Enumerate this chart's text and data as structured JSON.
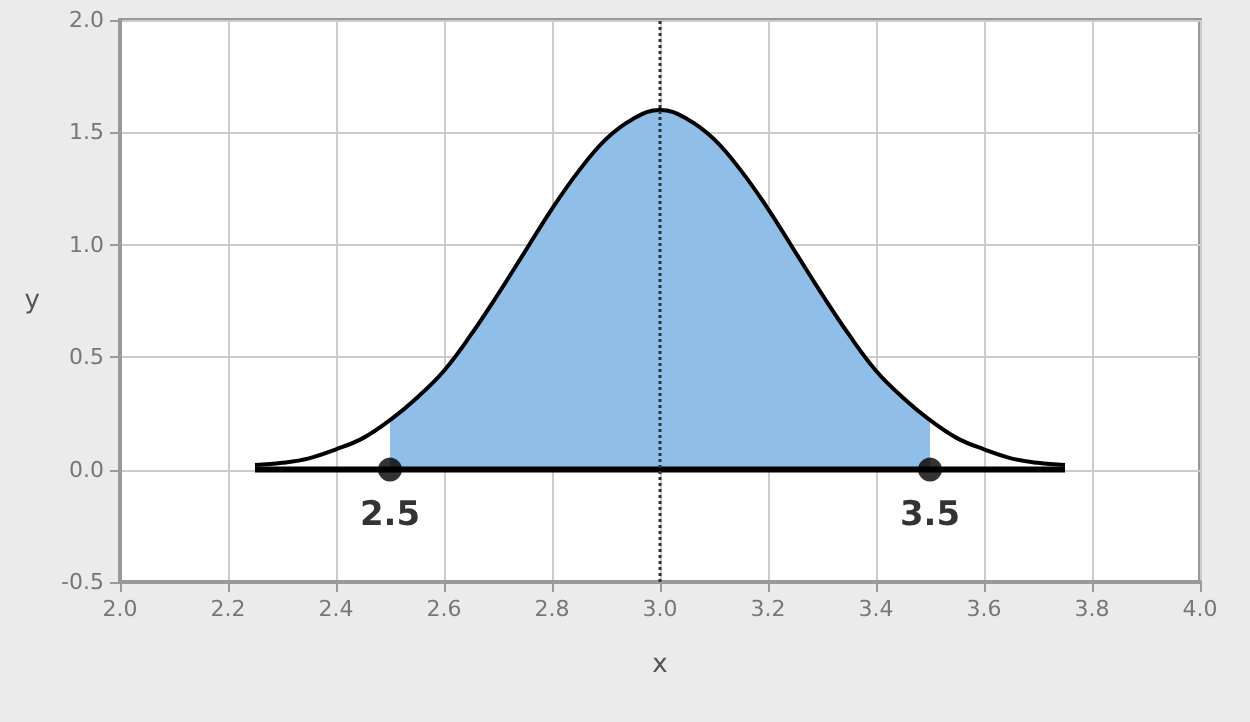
{
  "chart_data": {
    "type": "line",
    "xlabel": "x",
    "ylabel": "y",
    "xlim": [
      2,
      4
    ],
    "xticks": [
      {
        "value": 2,
        "label": "2.0"
      },
      {
        "value": 2.2,
        "label": "2.2"
      },
      {
        "value": 2.4,
        "label": "2.4"
      },
      {
        "value": 2.6,
        "label": "2.6"
      },
      {
        "value": 2.8,
        "label": "2.8"
      },
      {
        "value": 3,
        "label": "3.0"
      },
      {
        "value": 3.2,
        "label": "3.2"
      },
      {
        "value": 3.4,
        "label": "3.4"
      },
      {
        "value": 3.6,
        "label": "3.6"
      },
      {
        "value": 3.8,
        "label": "3.8"
      },
      {
        "value": 4,
        "label": "4.0"
      }
    ],
    "ylim": [
      -0.5,
      2
    ],
    "yticks": [
      -0.5,
      {
        "value": 0,
        "label": "0.0"
      },
      0.5,
      {
        "value": 1,
        "label": "1.0"
      },
      1.5,
      {
        "value": 2,
        "label": "2.0"
      }
    ],
    "grid": true,
    "series": [
      {
        "type": "area",
        "color": "#8fbfe8",
        "marker": "none",
        "x": [
          2.5,
          2.55,
          2.6,
          2.65,
          2.7,
          2.75,
          2.8,
          2.85,
          2.9,
          2.95,
          3,
          3.05,
          3.1,
          3.15,
          3.2,
          3.25,
          3.3,
          3.35,
          3.4,
          3.45,
          3.5
        ],
        "values": [
          0.22,
          0.32,
          0.44,
          0.6,
          0.78,
          0.97,
          1.16,
          1.33,
          1.47,
          1.56,
          1.6,
          1.56,
          1.47,
          1.33,
          1.16,
          0.97,
          0.78,
          0.6,
          0.44,
          0.32,
          0.22
        ]
      },
      {
        "color": "#000000",
        "marker": "none",
        "x": [
          2.25,
          2.3,
          2.35,
          2.4,
          2.45,
          2.5,
          2.55,
          2.6,
          2.65,
          2.7,
          2.75,
          2.8,
          2.85,
          2.9,
          2.95,
          3,
          3.05,
          3.1,
          3.15,
          3.2,
          3.25,
          3.3,
          3.35,
          3.4,
          3.45,
          3.5,
          3.55,
          3.6,
          3.65,
          3.7,
          3.75
        ],
        "values": [
          0.02,
          0.03,
          0.05,
          0.09,
          0.14,
          0.22,
          0.32,
          0.44,
          0.6,
          0.78,
          0.97,
          1.16,
          1.33,
          1.47,
          1.56,
          1.6,
          1.56,
          1.47,
          1.33,
          1.16,
          0.97,
          0.78,
          0.6,
          0.44,
          0.32,
          0.22,
          0.14,
          0.09,
          0.05,
          0.03,
          0.02
        ]
      },
      {
        "type": "line",
        "color": "#000000",
        "marker": "none",
        "x": [
          2.25,
          3.75
        ],
        "values": [
          0,
          0
        ]
      },
      {
        "type": "scatter",
        "color": "#000000",
        "marker": "circle",
        "x": [
          2.5,
          3.5
        ],
        "values": [
          0,
          0
        ]
      }
    ],
    "annotations": [
      {
        "text": "2.5",
        "x": 2.5,
        "y": 0
      },
      {
        "text": "3.5",
        "x": 3.5,
        "y": 0
      }
    ],
    "ref_lines": [
      {
        "axis": "x",
        "value": 3,
        "line_style": "dotted",
        "color": "#333333"
      }
    ]
  }
}
